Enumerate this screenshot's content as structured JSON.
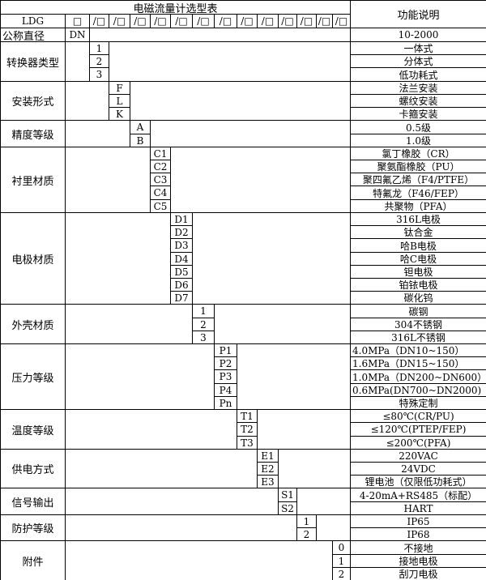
{
  "header": {
    "title": "电磁流量计选型表",
    "func_title": "功能说明",
    "model": "LDG",
    "first_box": "□",
    "box": "/□"
  },
  "nominal": {
    "label": "公称直径",
    "code": "DN",
    "desc": "10-2000"
  },
  "groups": [
    {
      "label": "转换器类型",
      "items": [
        {
          "code": "1",
          "desc": "一体式"
        },
        {
          "code": "2",
          "desc": "分体式"
        },
        {
          "code": "3",
          "desc": "低功耗式"
        }
      ]
    },
    {
      "label": "安装形式",
      "items": [
        {
          "code": "F",
          "desc": "法兰安装"
        },
        {
          "code": "L",
          "desc": "螺纹安装"
        },
        {
          "code": "K",
          "desc": "卡箍安装"
        }
      ]
    },
    {
      "label": "精度等级",
      "items": [
        {
          "code": "A",
          "desc": "0.5级"
        },
        {
          "code": "B",
          "desc": "1.0级"
        }
      ]
    },
    {
      "label": "衬里材质",
      "items": [
        {
          "code": "C1",
          "desc": "氯丁橡胶（CR）"
        },
        {
          "code": "C2",
          "desc": "聚氨酯橡胶（PU）"
        },
        {
          "code": "C3",
          "desc": "聚四氟乙烯（F4/PTFE）"
        },
        {
          "code": "C4",
          "desc": "特氟龙（F46/FEP）"
        },
        {
          "code": "C5",
          "desc": "共聚物（PFA）"
        }
      ]
    },
    {
      "label": "电极材质",
      "items": [
        {
          "code": "D1",
          "desc": "316L电极"
        },
        {
          "code": "D2",
          "desc": "钛合金"
        },
        {
          "code": "D3",
          "desc": "哈B电极"
        },
        {
          "code": "D4",
          "desc": "哈C电极"
        },
        {
          "code": "D5",
          "desc": "钽电极"
        },
        {
          "code": "D6",
          "desc": "铂铱电极"
        },
        {
          "code": "D7",
          "desc": "碳化钨"
        }
      ]
    },
    {
      "label": "外壳材质",
      "items": [
        {
          "code": "1",
          "desc": "碳钢"
        },
        {
          "code": "2",
          "desc": "304不锈钢"
        },
        {
          "code": "3",
          "desc": "316L不锈钢"
        }
      ]
    },
    {
      "label": "压力等级",
      "items": [
        {
          "code": "P1",
          "desc": "4.0MPa（DN10~150）"
        },
        {
          "code": "P2",
          "desc": "1.6MPa（DN15~150）"
        },
        {
          "code": "P3",
          "desc": "1.0MPa（DN200~DN600）"
        },
        {
          "code": "P4",
          "desc": "0.6MPa(DN700~DN2000)"
        },
        {
          "code": "Pn",
          "desc": "特殊定制"
        }
      ]
    },
    {
      "label": "温度等级",
      "items": [
        {
          "code": "T1",
          "desc": "≤80℃(CR/PU)"
        },
        {
          "code": "T2",
          "desc": "≤120℃(PTEP/FEP)"
        },
        {
          "code": "T3",
          "desc": "≤200℃(PFA)"
        }
      ]
    },
    {
      "label": "供电方式",
      "items": [
        {
          "code": "E1",
          "desc": "220VAC"
        },
        {
          "code": "E2",
          "desc": "24VDC"
        },
        {
          "code": "E3",
          "desc": "锂电池（仅限低功耗式）"
        }
      ]
    },
    {
      "label": "信号输出",
      "items": [
        {
          "code": "S1",
          "desc": "4-20mA+RS485（标配）"
        },
        {
          "code": "S2",
          "desc": "HART"
        }
      ]
    },
    {
      "label": "防护等级",
      "items": [
        {
          "code": "1",
          "desc": "IP65"
        },
        {
          "code": "2",
          "desc": "IP68"
        }
      ]
    },
    {
      "label": "附件",
      "items": [
        {
          "code": "0",
          "desc": "不接地"
        },
        {
          "code": "1",
          "desc": "接地电极"
        },
        {
          "code": "2",
          "desc": "刮刀电极"
        }
      ]
    }
  ]
}
